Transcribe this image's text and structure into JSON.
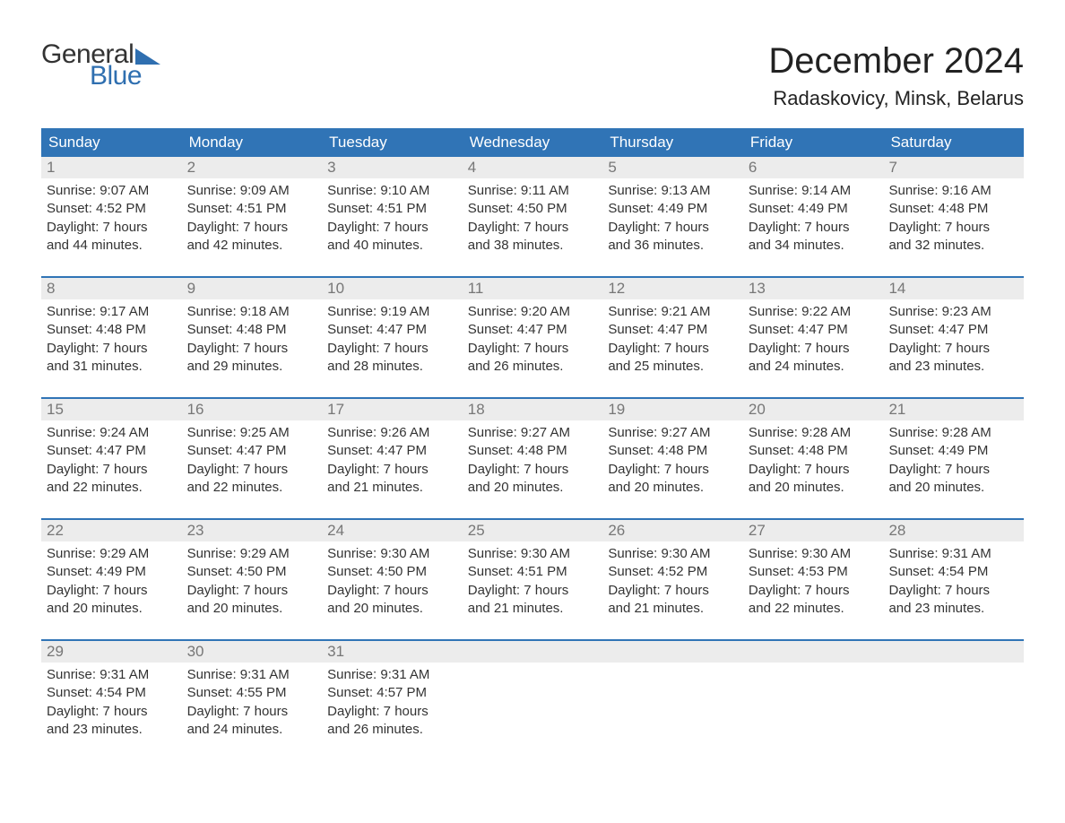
{
  "logo": {
    "line1": "General",
    "line2": "Blue",
    "color_text": "#333333",
    "color_blue": "#2f6fb0"
  },
  "title": "December 2024",
  "location": "Radaskovicy, Minsk, Belarus",
  "colors": {
    "header_bg": "#3074b6",
    "header_text": "#ffffff",
    "week_border": "#3074b6",
    "daynum_bg": "#ececec",
    "daynum_text": "#777777",
    "body_text": "#333333",
    "page_bg": "#ffffff"
  },
  "typography": {
    "title_fontsize": 40,
    "location_fontsize": 22,
    "header_fontsize": 17,
    "daynum_fontsize": 17,
    "body_fontsize": 15,
    "logo_fontsize": 30
  },
  "day_headers": [
    "Sunday",
    "Monday",
    "Tuesday",
    "Wednesday",
    "Thursday",
    "Friday",
    "Saturday"
  ],
  "weeks": [
    [
      {
        "n": "1",
        "sunrise": "Sunrise: 9:07 AM",
        "sunset": "Sunset: 4:52 PM",
        "d1": "Daylight: 7 hours",
        "d2": "and 44 minutes."
      },
      {
        "n": "2",
        "sunrise": "Sunrise: 9:09 AM",
        "sunset": "Sunset: 4:51 PM",
        "d1": "Daylight: 7 hours",
        "d2": "and 42 minutes."
      },
      {
        "n": "3",
        "sunrise": "Sunrise: 9:10 AM",
        "sunset": "Sunset: 4:51 PM",
        "d1": "Daylight: 7 hours",
        "d2": "and 40 minutes."
      },
      {
        "n": "4",
        "sunrise": "Sunrise: 9:11 AM",
        "sunset": "Sunset: 4:50 PM",
        "d1": "Daylight: 7 hours",
        "d2": "and 38 minutes."
      },
      {
        "n": "5",
        "sunrise": "Sunrise: 9:13 AM",
        "sunset": "Sunset: 4:49 PM",
        "d1": "Daylight: 7 hours",
        "d2": "and 36 minutes."
      },
      {
        "n": "6",
        "sunrise": "Sunrise: 9:14 AM",
        "sunset": "Sunset: 4:49 PM",
        "d1": "Daylight: 7 hours",
        "d2": "and 34 minutes."
      },
      {
        "n": "7",
        "sunrise": "Sunrise: 9:16 AM",
        "sunset": "Sunset: 4:48 PM",
        "d1": "Daylight: 7 hours",
        "d2": "and 32 minutes."
      }
    ],
    [
      {
        "n": "8",
        "sunrise": "Sunrise: 9:17 AM",
        "sunset": "Sunset: 4:48 PM",
        "d1": "Daylight: 7 hours",
        "d2": "and 31 minutes."
      },
      {
        "n": "9",
        "sunrise": "Sunrise: 9:18 AM",
        "sunset": "Sunset: 4:48 PM",
        "d1": "Daylight: 7 hours",
        "d2": "and 29 minutes."
      },
      {
        "n": "10",
        "sunrise": "Sunrise: 9:19 AM",
        "sunset": "Sunset: 4:47 PM",
        "d1": "Daylight: 7 hours",
        "d2": "and 28 minutes."
      },
      {
        "n": "11",
        "sunrise": "Sunrise: 9:20 AM",
        "sunset": "Sunset: 4:47 PM",
        "d1": "Daylight: 7 hours",
        "d2": "and 26 minutes."
      },
      {
        "n": "12",
        "sunrise": "Sunrise: 9:21 AM",
        "sunset": "Sunset: 4:47 PM",
        "d1": "Daylight: 7 hours",
        "d2": "and 25 minutes."
      },
      {
        "n": "13",
        "sunrise": "Sunrise: 9:22 AM",
        "sunset": "Sunset: 4:47 PM",
        "d1": "Daylight: 7 hours",
        "d2": "and 24 minutes."
      },
      {
        "n": "14",
        "sunrise": "Sunrise: 9:23 AM",
        "sunset": "Sunset: 4:47 PM",
        "d1": "Daylight: 7 hours",
        "d2": "and 23 minutes."
      }
    ],
    [
      {
        "n": "15",
        "sunrise": "Sunrise: 9:24 AM",
        "sunset": "Sunset: 4:47 PM",
        "d1": "Daylight: 7 hours",
        "d2": "and 22 minutes."
      },
      {
        "n": "16",
        "sunrise": "Sunrise: 9:25 AM",
        "sunset": "Sunset: 4:47 PM",
        "d1": "Daylight: 7 hours",
        "d2": "and 22 minutes."
      },
      {
        "n": "17",
        "sunrise": "Sunrise: 9:26 AM",
        "sunset": "Sunset: 4:47 PM",
        "d1": "Daylight: 7 hours",
        "d2": "and 21 minutes."
      },
      {
        "n": "18",
        "sunrise": "Sunrise: 9:27 AM",
        "sunset": "Sunset: 4:48 PM",
        "d1": "Daylight: 7 hours",
        "d2": "and 20 minutes."
      },
      {
        "n": "19",
        "sunrise": "Sunrise: 9:27 AM",
        "sunset": "Sunset: 4:48 PM",
        "d1": "Daylight: 7 hours",
        "d2": "and 20 minutes."
      },
      {
        "n": "20",
        "sunrise": "Sunrise: 9:28 AM",
        "sunset": "Sunset: 4:48 PM",
        "d1": "Daylight: 7 hours",
        "d2": "and 20 minutes."
      },
      {
        "n": "21",
        "sunrise": "Sunrise: 9:28 AM",
        "sunset": "Sunset: 4:49 PM",
        "d1": "Daylight: 7 hours",
        "d2": "and 20 minutes."
      }
    ],
    [
      {
        "n": "22",
        "sunrise": "Sunrise: 9:29 AM",
        "sunset": "Sunset: 4:49 PM",
        "d1": "Daylight: 7 hours",
        "d2": "and 20 minutes."
      },
      {
        "n": "23",
        "sunrise": "Sunrise: 9:29 AM",
        "sunset": "Sunset: 4:50 PM",
        "d1": "Daylight: 7 hours",
        "d2": "and 20 minutes."
      },
      {
        "n": "24",
        "sunrise": "Sunrise: 9:30 AM",
        "sunset": "Sunset: 4:50 PM",
        "d1": "Daylight: 7 hours",
        "d2": "and 20 minutes."
      },
      {
        "n": "25",
        "sunrise": "Sunrise: 9:30 AM",
        "sunset": "Sunset: 4:51 PM",
        "d1": "Daylight: 7 hours",
        "d2": "and 21 minutes."
      },
      {
        "n": "26",
        "sunrise": "Sunrise: 9:30 AM",
        "sunset": "Sunset: 4:52 PM",
        "d1": "Daylight: 7 hours",
        "d2": "and 21 minutes."
      },
      {
        "n": "27",
        "sunrise": "Sunrise: 9:30 AM",
        "sunset": "Sunset: 4:53 PM",
        "d1": "Daylight: 7 hours",
        "d2": "and 22 minutes."
      },
      {
        "n": "28",
        "sunrise": "Sunrise: 9:31 AM",
        "sunset": "Sunset: 4:54 PM",
        "d1": "Daylight: 7 hours",
        "d2": "and 23 minutes."
      }
    ],
    [
      {
        "n": "29",
        "sunrise": "Sunrise: 9:31 AM",
        "sunset": "Sunset: 4:54 PM",
        "d1": "Daylight: 7 hours",
        "d2": "and 23 minutes."
      },
      {
        "n": "30",
        "sunrise": "Sunrise: 9:31 AM",
        "sunset": "Sunset: 4:55 PM",
        "d1": "Daylight: 7 hours",
        "d2": "and 24 minutes."
      },
      {
        "n": "31",
        "sunrise": "Sunrise: 9:31 AM",
        "sunset": "Sunset: 4:57 PM",
        "d1": "Daylight: 7 hours",
        "d2": "and 26 minutes."
      },
      null,
      null,
      null,
      null
    ]
  ]
}
